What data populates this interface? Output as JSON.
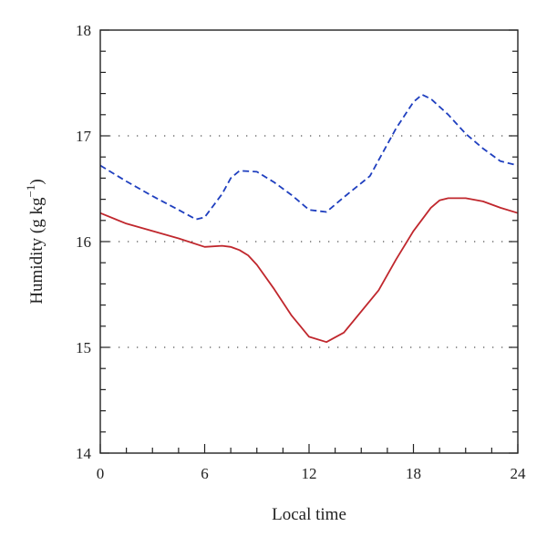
{
  "chart_data": {
    "type": "line",
    "xlabel": "Local time",
    "ylabel": {
      "prefix": "Humidity (g kg",
      "superscript": "−1",
      "suffix": ")"
    },
    "xlim": [
      0,
      24
    ],
    "ylim": [
      14,
      18
    ],
    "x_ticks": [
      0,
      6,
      12,
      18,
      24
    ],
    "y_ticks": [
      14,
      15,
      16,
      17,
      18
    ],
    "grid": {
      "y": [
        15,
        16,
        17
      ],
      "style": "dotted"
    },
    "series": [
      {
        "style": "dashed",
        "color": "#1f3fbf",
        "x": [
          0,
          1.5,
          3,
          4.5,
          5.5,
          6,
          7,
          7.5,
          8,
          9,
          10,
          11,
          12,
          13,
          14,
          15.5,
          17,
          18,
          18.5,
          19,
          20,
          21,
          22,
          23,
          24
        ],
        "y": [
          16.72,
          16.57,
          16.43,
          16.3,
          16.21,
          16.23,
          16.45,
          16.6,
          16.67,
          16.66,
          16.56,
          16.44,
          16.3,
          16.28,
          16.42,
          16.62,
          17.07,
          17.32,
          17.39,
          17.35,
          17.2,
          17.02,
          16.88,
          16.76,
          16.72
        ]
      },
      {
        "style": "solid",
        "color": "#c0272d",
        "x": [
          0,
          1.5,
          3,
          4.5,
          6,
          7,
          7.5,
          8,
          8.5,
          9,
          10,
          11,
          11.5,
          12,
          13,
          14,
          16,
          17,
          18,
          19,
          19.5,
          20,
          21,
          22,
          23,
          24
        ],
        "y": [
          16.27,
          16.17,
          16.1,
          16.03,
          15.95,
          15.96,
          15.95,
          15.92,
          15.87,
          15.78,
          15.55,
          15.3,
          15.2,
          15.1,
          15.05,
          15.14,
          15.54,
          15.83,
          16.1,
          16.32,
          16.39,
          16.41,
          16.41,
          16.38,
          16.32,
          16.27
        ]
      }
    ]
  }
}
